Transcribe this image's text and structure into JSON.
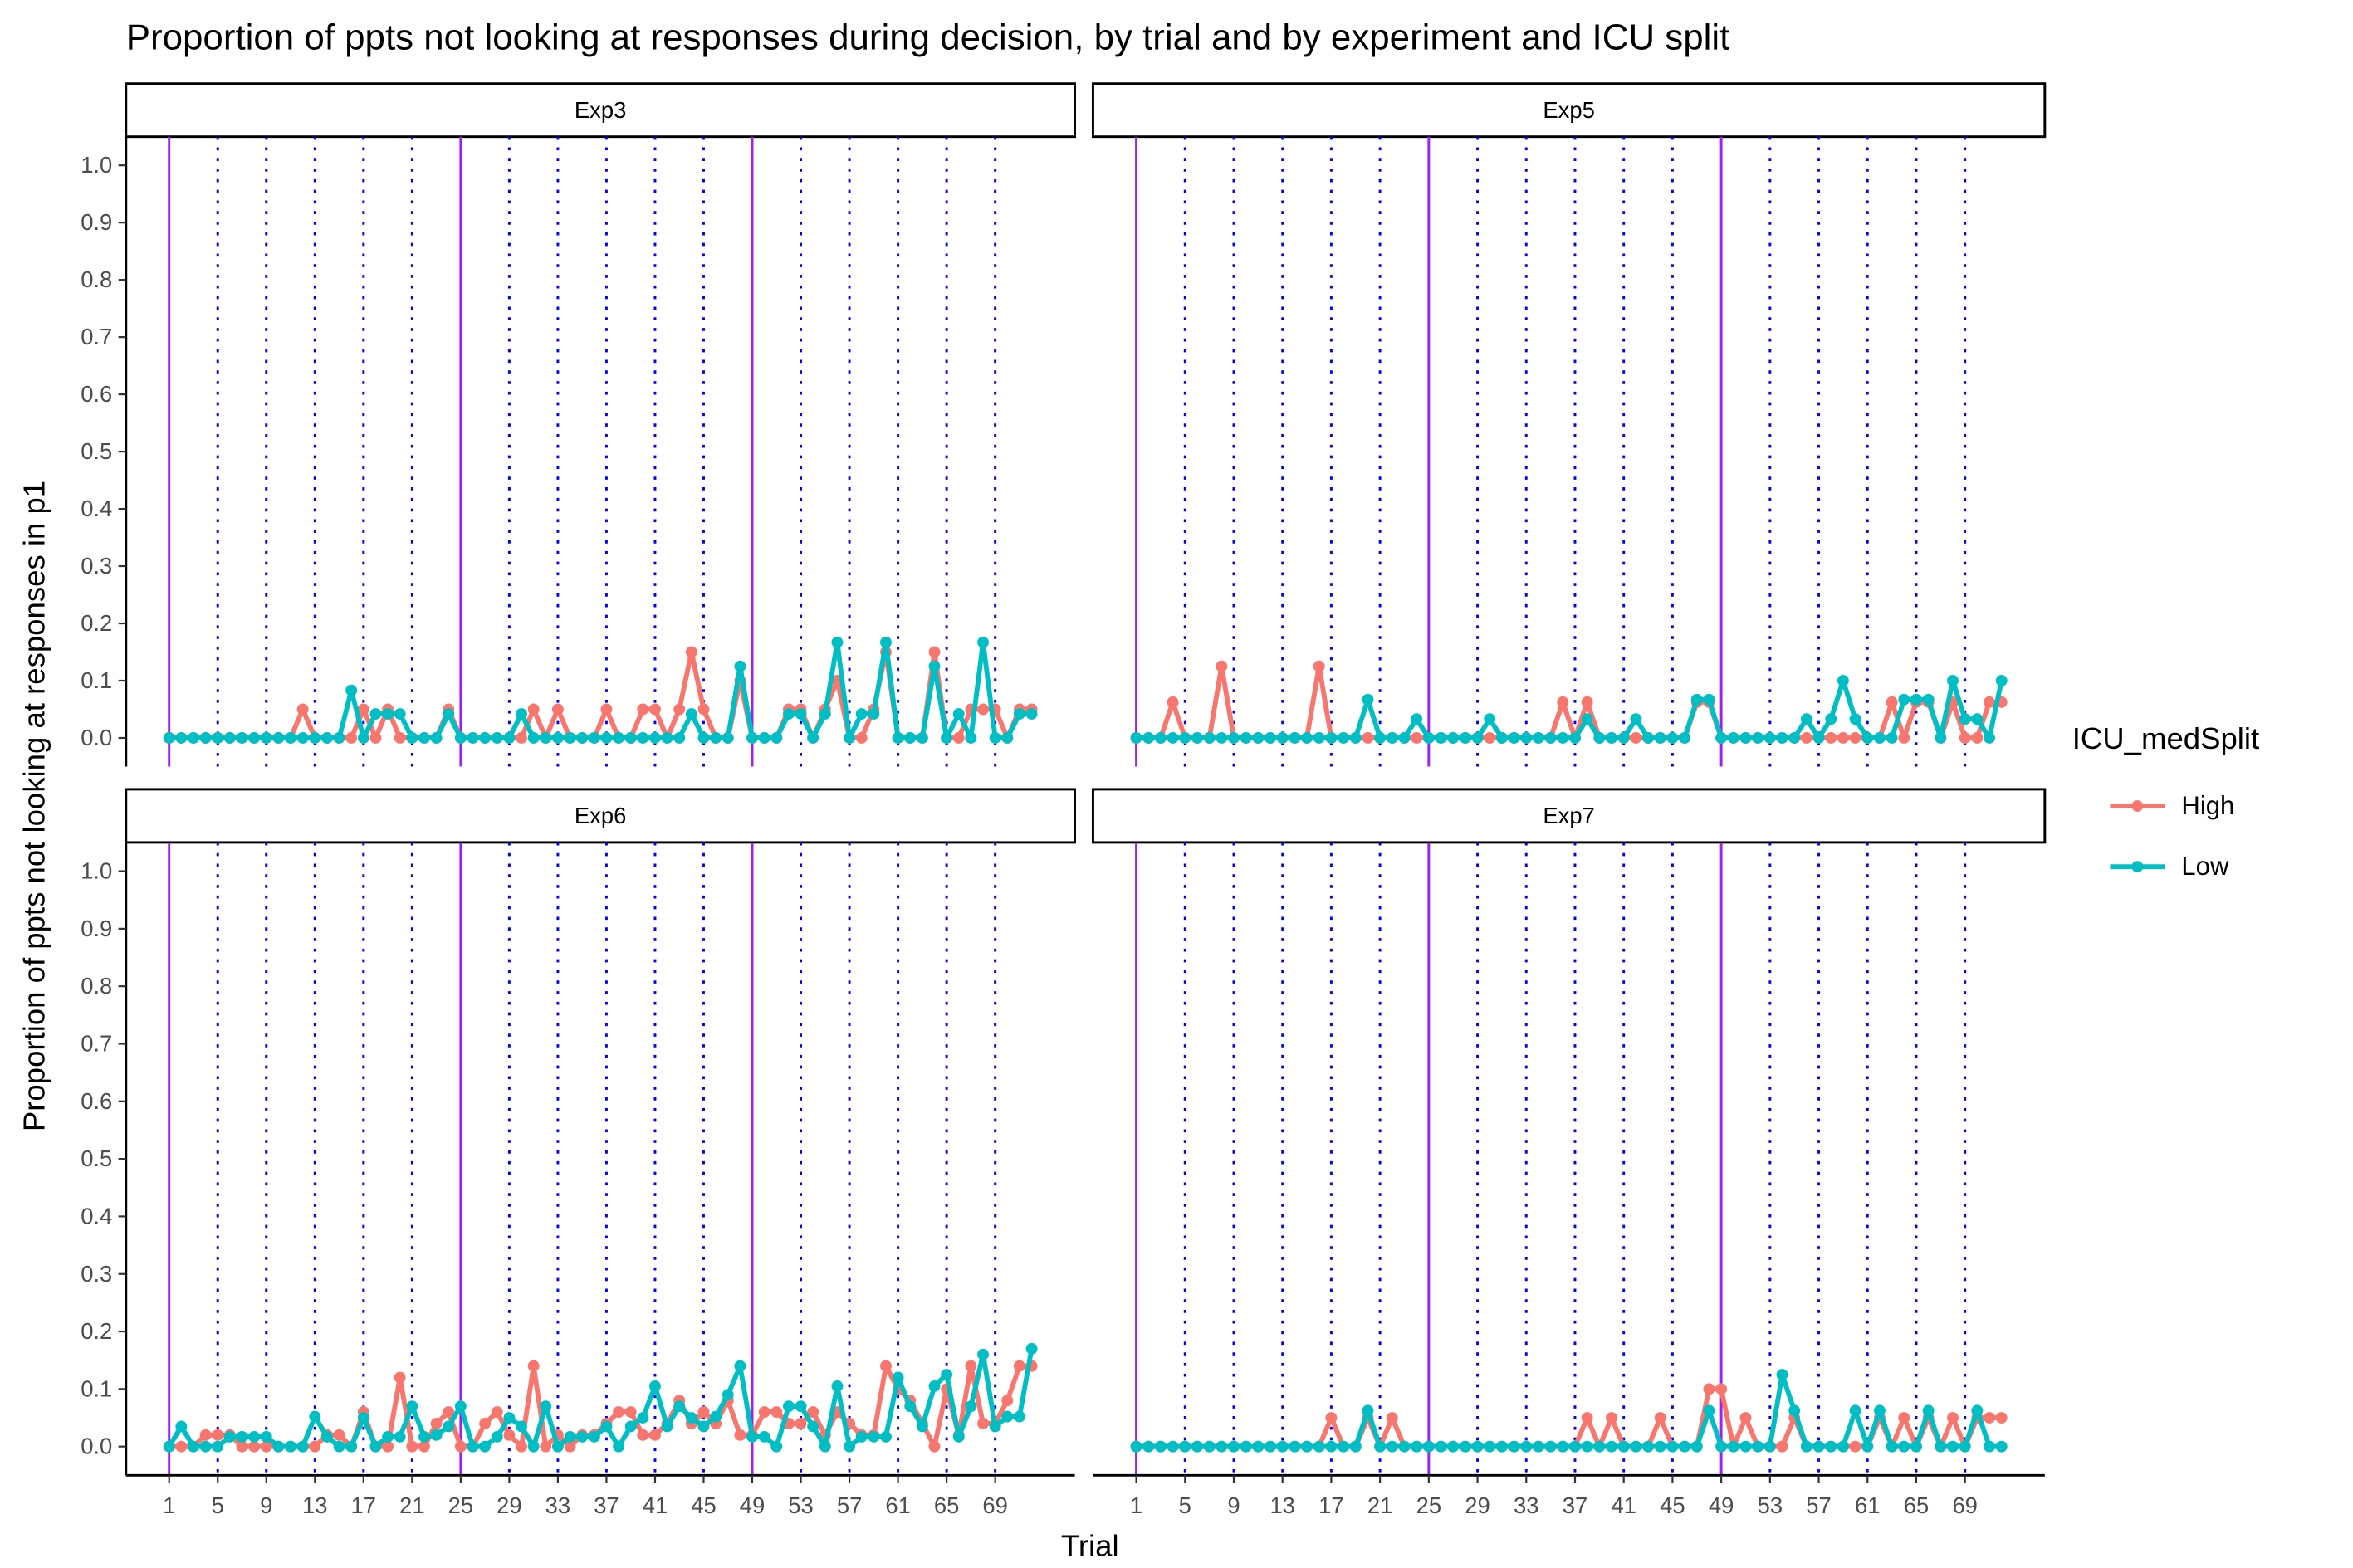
{
  "chart_data": {
    "type": "line",
    "title": "Proportion of ppts not looking at responses during decision, by trial and by experiment and ICU split",
    "x_label": "Trial",
    "y_label": "Proportion of ppts not looking at responses in p1",
    "legend_title": "ICU_medSplit",
    "x": [
      1,
      2,
      3,
      4,
      5,
      6,
      7,
      8,
      9,
      10,
      11,
      12,
      13,
      14,
      15,
      16,
      17,
      18,
      19,
      20,
      21,
      22,
      23,
      24,
      25,
      26,
      27,
      28,
      29,
      30,
      31,
      32,
      33,
      34,
      35,
      36,
      37,
      38,
      39,
      40,
      41,
      42,
      43,
      44,
      45,
      46,
      47,
      48,
      49,
      50,
      51,
      52,
      53,
      54,
      55,
      56,
      57,
      58,
      59,
      60,
      61,
      62,
      63,
      64,
      65,
      66,
      67,
      68,
      69,
      70,
      71,
      72
    ],
    "xlim": [
      -2.55,
      75.55
    ],
    "xticks": [
      1,
      5,
      9,
      13,
      17,
      21,
      25,
      29,
      33,
      37,
      41,
      45,
      49,
      53,
      57,
      61,
      65,
      69
    ],
    "ylim": [
      -0.05,
      1.05
    ],
    "yticks": [
      {
        "value": 0,
        "label": "0.0"
      },
      0.1,
      0.2,
      0.3,
      0.4,
      0.5,
      0.6,
      0.7,
      0.8,
      0.9,
      {
        "value": 1,
        "label": "1.0"
      }
    ],
    "solid_vlines": [
      1,
      25,
      49
    ],
    "solid_vline_color": "#a020f0",
    "dotted_vlines": [
      5,
      9,
      13,
      17,
      21,
      29,
      33,
      37,
      41,
      45,
      53,
      57,
      61,
      65,
      69
    ],
    "dotted_vline_color": "#0000ff",
    "facets": [
      {
        "name": "Exp3",
        "series": [
          {
            "name": "High",
            "color": "#f8766d",
            "values": [
              0,
              0,
              0,
              0,
              0,
              0,
              0,
              0,
              0,
              0,
              0,
              0.05,
              0,
              0,
              0,
              0,
              0.05,
              0,
              0.05,
              0,
              0,
              0,
              0,
              0.05,
              0,
              0,
              0,
              0,
              0,
              0,
              0.05,
              0,
              0.05,
              0,
              0,
              0,
              0.05,
              0,
              0,
              0.05,
              0.05,
              0,
              0.05,
              0.15,
              0.05,
              0,
              0,
              0.1,
              0,
              0,
              0,
              0.05,
              0.05,
              0,
              0.05,
              0.1,
              0,
              0,
              0.05,
              0.15,
              0,
              0,
              0,
              0.15,
              0,
              0,
              0.05,
              0.05,
              0.05,
              0,
              0.05,
              0.05
            ]
          },
          {
            "name": "Low",
            "color": "#00bfc4",
            "values": [
              0,
              0,
              0,
              0,
              0,
              0,
              0,
              0,
              0,
              0,
              0,
              0,
              0,
              0,
              0,
              0.083,
              0,
              0.042,
              0.042,
              0.042,
              0,
              0,
              0,
              0.042,
              0,
              0,
              0,
              0,
              0,
              0.042,
              0,
              0,
              0,
              0,
              0,
              0,
              0,
              0,
              0,
              0,
              0,
              0,
              0,
              0.042,
              0,
              0,
              0,
              0.125,
              0,
              0,
              0,
              0.042,
              0.042,
              0,
              0.042,
              0.167,
              0,
              0.042,
              0.042,
              0.167,
              0,
              0,
              0,
              0.125,
              0,
              0.042,
              0,
              0.167,
              0,
              0,
              0.042,
              0.042
            ]
          }
        ]
      },
      {
        "name": "Exp5",
        "series": [
          {
            "name": "High",
            "color": "#f8766d",
            "values": [
              0,
              0,
              0,
              0.0625,
              0,
              0,
              0,
              0.125,
              0,
              0,
              0,
              0,
              0,
              0,
              0,
              0.125,
              0,
              0,
              0,
              0,
              0,
              0,
              0,
              0,
              0,
              0,
              0,
              0,
              0,
              0,
              0,
              0,
              0,
              0,
              0,
              0.0625,
              0,
              0.0625,
              0,
              0,
              0,
              0,
              0,
              0,
              0,
              0,
              0.0625,
              0.0625,
              0,
              0,
              0,
              0,
              0,
              0,
              0,
              0,
              0,
              0,
              0,
              0,
              0,
              0,
              0.0625,
              0,
              0.0625,
              0.0625,
              0,
              0.0625,
              0,
              0,
              0.0625,
              0.0625
            ]
          },
          {
            "name": "Low",
            "color": "#00bfc4",
            "values": [
              0,
              0,
              0,
              0,
              0,
              0,
              0,
              0,
              0,
              0,
              0,
              0,
              0,
              0,
              0,
              0,
              0,
              0,
              0,
              0.067,
              0,
              0,
              0,
              0.033,
              0,
              0,
              0,
              0,
              0,
              0.033,
              0,
              0,
              0,
              0,
              0,
              0,
              0,
              0.033,
              0,
              0,
              0,
              0.033,
              0,
              0,
              0,
              0,
              0.067,
              0.067,
              0,
              0,
              0,
              0,
              0,
              0,
              0,
              0.033,
              0,
              0.033,
              0.1,
              0.033,
              0,
              0,
              0,
              0.067,
              0.067,
              0.067,
              0,
              0.1,
              0.033,
              0.033,
              0,
              0.1
            ]
          }
        ]
      },
      {
        "name": "Exp6",
        "series": [
          {
            "name": "High",
            "color": "#f8766d",
            "values": [
              0,
              0,
              0,
              0.02,
              0.02,
              0.02,
              0,
              0,
              0,
              0,
              0,
              0,
              0,
              0.02,
              0.02,
              0,
              0.06,
              0,
              0,
              0.12,
              0,
              0,
              0.04,
              0.06,
              0,
              0,
              0.04,
              0.06,
              0.02,
              0,
              0.14,
              0,
              0.02,
              0,
              0.02,
              0.02,
              0.04,
              0.06,
              0.06,
              0.02,
              0.02,
              0.04,
              0.08,
              0.04,
              0.06,
              0.04,
              0.08,
              0.02,
              0.02,
              0.06,
              0.06,
              0.04,
              0.04,
              0.06,
              0.02,
              0.06,
              0.04,
              0.02,
              0.02,
              0.14,
              0.1,
              0.08,
              0.04,
              0,
              0.1,
              0.02,
              0.14,
              0.04,
              0.04,
              0.08,
              0.14,
              0.14
            ]
          },
          {
            "name": "Low",
            "color": "#00bfc4",
            "values": [
              0,
              0.035,
              0,
              0,
              0,
              0.017,
              0.017,
              0.017,
              0.017,
              0,
              0,
              0,
              0.052,
              0.017,
              0,
              0,
              0.05,
              0,
              0.017,
              0.017,
              0.07,
              0.017,
              0.02,
              0.035,
              0.07,
              0,
              0,
              0.017,
              0.05,
              0.035,
              0,
              0.07,
              0,
              0.017,
              0.017,
              0.017,
              0.035,
              0,
              0.035,
              0.05,
              0.105,
              0.035,
              0.07,
              0.05,
              0.035,
              0.052,
              0.09,
              0.14,
              0.017,
              0.017,
              0,
              0.07,
              0.07,
              0.035,
              0,
              0.105,
              0,
              0.017,
              0.017,
              0.017,
              0.12,
              0.07,
              0.035,
              0.105,
              0.125,
              0.017,
              0.07,
              0.16,
              0.035,
              0.052,
              0.052,
              0.17
            ]
          }
        ]
      },
      {
        "name": "Exp7",
        "series": [
          {
            "name": "High",
            "color": "#f8766d",
            "values": [
              0,
              0,
              0,
              0,
              0,
              0,
              0,
              0,
              0,
              0,
              0,
              0,
              0,
              0,
              0,
              0,
              0.05,
              0,
              0,
              0.05,
              0,
              0.05,
              0,
              0,
              0,
              0,
              0,
              0,
              0,
              0,
              0,
              0,
              0,
              0,
              0,
              0,
              0,
              0.05,
              0,
              0.05,
              0,
              0,
              0,
              0.05,
              0,
              0,
              0,
              0.1,
              0.1,
              0,
              0.05,
              0,
              0,
              0,
              0.05,
              0,
              0,
              0,
              0,
              0,
              0,
              0.05,
              0,
              0.05,
              0,
              0.05,
              0,
              0.05,
              0,
              0.05,
              0.05,
              0.05
            ]
          },
          {
            "name": "Low",
            "color": "#00bfc4",
            "values": [
              0,
              0,
              0,
              0,
              0,
              0,
              0,
              0,
              0,
              0,
              0,
              0,
              0,
              0,
              0,
              0,
              0,
              0,
              0,
              0.0625,
              0,
              0,
              0,
              0,
              0,
              0,
              0,
              0,
              0,
              0,
              0,
              0,
              0,
              0,
              0,
              0,
              0,
              0,
              0,
              0,
              0,
              0,
              0,
              0,
              0,
              0,
              0,
              0.0625,
              0,
              0,
              0,
              0,
              0,
              0.125,
              0.0625,
              0,
              0,
              0,
              0,
              0.0625,
              0,
              0.0625,
              0,
              0,
              0,
              0.0625,
              0,
              0,
              0,
              0.0625,
              0,
              0
            ]
          }
        ]
      }
    ]
  }
}
